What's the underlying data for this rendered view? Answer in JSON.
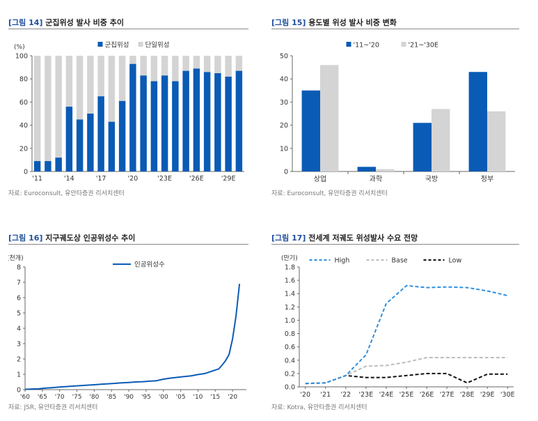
{
  "colors": {
    "primary": "#0a5bb5",
    "secondary": "#d4d4d4",
    "title_tag": "#1f4e9c",
    "black": "#111111"
  },
  "panels": [
    {
      "tag": "[그림 14]",
      "title": "군집위성 발사 비중 추이",
      "source": "자료: Euroconsult, 유안타증권 리서치센터"
    },
    {
      "tag": "[그림 15]",
      "title": "용도별 위성 발사 비중 변화",
      "source": "자료: Euroconsult, 유안타증권 리서치센터"
    },
    {
      "tag": "[그림 16]",
      "title": "지구궤도상 인공위성수 추이",
      "source": "자료: JSR, 유안타증권 리서치센터"
    },
    {
      "tag": "[그림 17]",
      "title": "전세계 저궤도 위성발사 수요 전망",
      "source": "자료: Kotra, 유안타증권 리서치센터"
    }
  ],
  "chart_data": [
    {
      "type": "bar",
      "stacked": true,
      "unit": "(%)",
      "categories": [
        "'11",
        "'12",
        "'13",
        "'14",
        "'15",
        "'16",
        "'17",
        "'18",
        "'19",
        "'20",
        "'21",
        "'22",
        "'23E",
        "'24E",
        "'25E",
        "'26E",
        "'27E",
        "'28E",
        "'29E",
        "'30E"
      ],
      "xticks": [
        "'11",
        "'14",
        "'17",
        "'20",
        "'23E",
        "'26E",
        "'29E"
      ],
      "yticks": [
        0,
        20,
        40,
        60,
        80,
        100
      ],
      "ylim": [
        0,
        100
      ],
      "series": [
        {
          "name": "군집위성",
          "color": "#0a5bb5",
          "values": [
            9,
            9,
            12,
            56,
            45,
            50,
            65,
            43,
            61,
            93,
            83,
            78,
            83,
            78,
            87,
            89,
            86,
            85,
            82,
            87
          ]
        },
        {
          "name": "단일위성",
          "color": "#d4d4d4",
          "values": [
            91,
            91,
            88,
            44,
            55,
            50,
            35,
            57,
            39,
            7,
            17,
            22,
            17,
            22,
            13,
            11,
            14,
            15,
            18,
            13
          ]
        }
      ],
      "legend": "top-center"
    },
    {
      "type": "bar",
      "unit": "",
      "categories": [
        "상업",
        "과학",
        "국방",
        "정부"
      ],
      "yticks": [
        0,
        10,
        20,
        30,
        40,
        50
      ],
      "ylim": [
        0,
        50
      ],
      "series": [
        {
          "name": "'11~'20",
          "color": "#0a5bb5",
          "values": [
            35,
            2,
            21,
            43
          ]
        },
        {
          "name": "'21~'30E",
          "color": "#d4d4d4",
          "values": [
            46,
            1,
            27,
            26
          ]
        }
      ],
      "legend": "top-center"
    },
    {
      "type": "line",
      "unit": "(천개)",
      "x": [
        1960,
        1962,
        1964,
        1966,
        1968,
        1970,
        1972,
        1974,
        1976,
        1978,
        1980,
        1982,
        1984,
        1986,
        1988,
        1990,
        1992,
        1994,
        1996,
        1998,
        2000,
        2002,
        2004,
        2006,
        2008,
        2010,
        2012,
        2014,
        2016,
        2017,
        2018,
        2019,
        2020,
        2021,
        2022
      ],
      "xticks": [
        "'60",
        "'65",
        "'70",
        "'75",
        "'80",
        "'85",
        "'90",
        "'95",
        "'00",
        "'05",
        "'10",
        "'15",
        "'20"
      ],
      "xtick_values": [
        1960,
        1965,
        1970,
        1975,
        1980,
        1985,
        1990,
        1995,
        2000,
        2005,
        2010,
        2015,
        2020
      ],
      "yticks": [
        0,
        1,
        2,
        3,
        4,
        5,
        6,
        7,
        8
      ],
      "ylim": [
        0,
        8
      ],
      "xlim": [
        1960,
        2024
      ],
      "series": [
        {
          "name": "인공위성수",
          "color": "#0a5bb5",
          "values": [
            0.02,
            0.04,
            0.06,
            0.1,
            0.13,
            0.17,
            0.2,
            0.23,
            0.26,
            0.29,
            0.32,
            0.35,
            0.38,
            0.41,
            0.44,
            0.47,
            0.5,
            0.52,
            0.55,
            0.58,
            0.68,
            0.75,
            0.8,
            0.85,
            0.9,
            0.98,
            1.05,
            1.2,
            1.35,
            1.6,
            1.9,
            2.3,
            3.3,
            4.8,
            6.9
          ]
        }
      ],
      "legend": "top-center"
    },
    {
      "type": "line",
      "unit": "(만기)",
      "categories": [
        "'20",
        "'21",
        "'22",
        "'23E",
        "'24E",
        "'25E",
        "'26E",
        "'27E",
        "'28E",
        "'29E",
        "'30E"
      ],
      "yticks": [
        0.0,
        0.2,
        0.4,
        0.6,
        0.8,
        1.0,
        1.2,
        1.4,
        1.6,
        1.8
      ],
      "ylim": [
        0,
        1.8
      ],
      "series": [
        {
          "name": "High",
          "color": "#2f8fe0",
          "dash": true,
          "values": [
            0.05,
            0.06,
            0.17,
            0.48,
            1.25,
            1.52,
            1.49,
            1.5,
            1.49,
            1.44,
            1.37
          ]
        },
        {
          "name": "Base",
          "color": "#bdbdbd",
          "dash": true,
          "values": [
            0.05,
            0.06,
            0.17,
            0.31,
            0.32,
            0.37,
            0.44,
            0.44,
            0.44,
            0.44,
            0.44
          ]
        },
        {
          "name": "Low",
          "color": "#111111",
          "dash": true,
          "values": [
            0.05,
            0.06,
            0.17,
            0.14,
            0.14,
            0.17,
            0.2,
            0.2,
            0.06,
            0.19,
            0.19
          ]
        }
      ],
      "legend": "top-center"
    }
  ]
}
